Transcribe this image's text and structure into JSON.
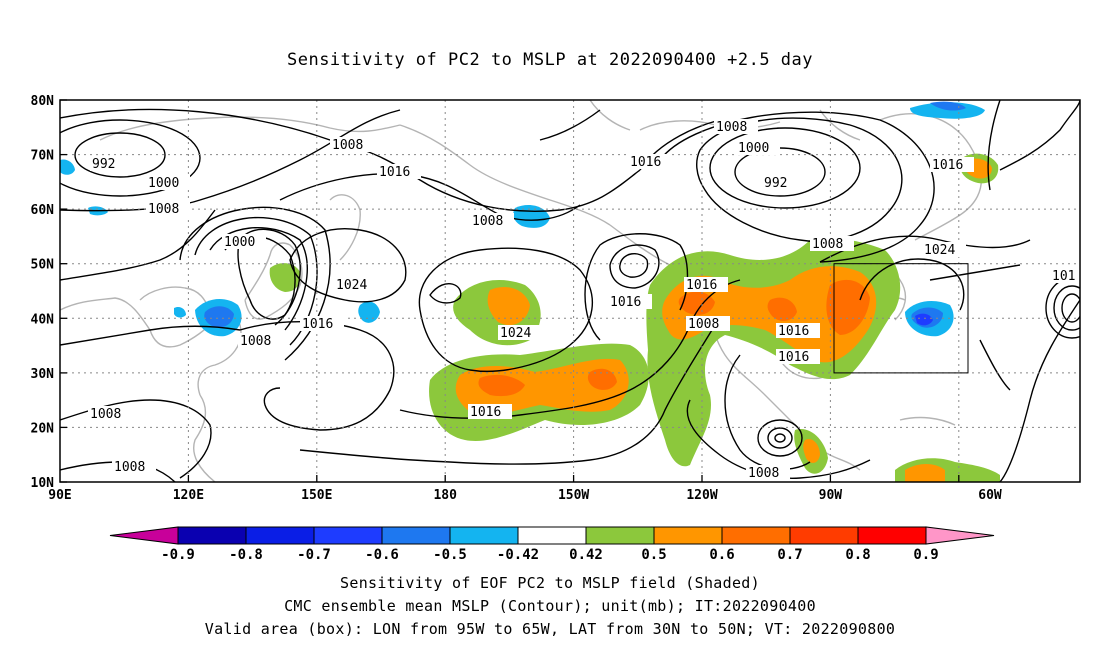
{
  "title": "Sensitivity of PC2 to MSLP at 2022090400 +2.5 day",
  "axes": {
    "lat_labels": [
      "80N",
      "70N",
      "60N",
      "50N",
      "40N",
      "30N",
      "20N",
      "10N"
    ],
    "lon_labels": [
      "90E",
      "120E",
      "150E",
      "180",
      "150W",
      "120W",
      "90W",
      "60W"
    ]
  },
  "contour_labels": [
    "992",
    "1000",
    "1008",
    "1008",
    "1016",
    "1000",
    "1008",
    "1024",
    "1016",
    "1008",
    "1008",
    "1008",
    "1024",
    "1016",
    "1016",
    "1016",
    "1008",
    "1008",
    "1000",
    "992",
    "1016",
    "1008",
    "1024",
    "1016",
    "1016",
    "1016",
    "1008",
    "101"
  ],
  "colorbar": {
    "labels": [
      "-0.9",
      "-0.8",
      "-0.7",
      "-0.6",
      "-0.5",
      "-0.42",
      "0.42",
      "0.5",
      "0.6",
      "0.7",
      "0.8",
      "0.9"
    ],
    "colors": [
      "#0a00b0",
      "#0a1ee6",
      "#1e3cff",
      "#1e78f0",
      "#14b4f0",
      "#ffffff",
      "#8cc83c",
      "#ff9600",
      "#ff6e00",
      "#ff3c00",
      "#ff0000"
    ],
    "end_low": "#c8009a",
    "end_high": "#ff96c8"
  },
  "shading_colors": {
    "pos1": "#8cc83c",
    "pos2": "#ff9600",
    "pos3": "#ff6e00",
    "neg1": "#14b4f0",
    "neg2": "#1e78f0",
    "neg3": "#1e3cff"
  },
  "valid_box": {
    "lon_w": "95W",
    "lon_e": "65W",
    "lat_s": "30N",
    "lat_n": "50N"
  },
  "captions": {
    "line1": "Sensitivity of EOF PC2 to MSLP field (Shaded)",
    "line2": "CMC ensemble mean MSLP (Contour); unit(mb); IT:2022090400",
    "line3": "Valid area (box): LON from 95W to 65W, LAT from 30N to 50N; VT: 2022090800"
  }
}
